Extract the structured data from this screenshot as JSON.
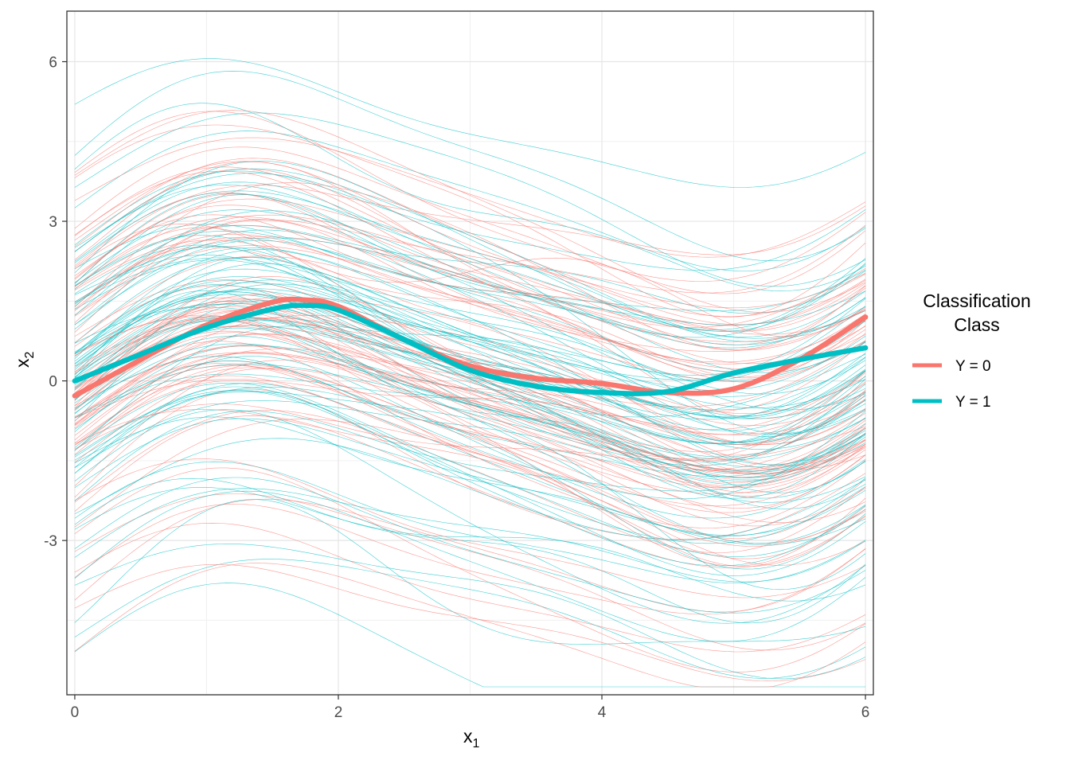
{
  "chart_data": {
    "type": "line",
    "xlabel": "x",
    "xlabel_sub": "1",
    "ylabel": "x",
    "ylabel_sub": "2",
    "xlim": [
      -0.06,
      6.06
    ],
    "ylim": [
      -5.9,
      6.95
    ],
    "x_ticks": [
      0,
      2,
      4,
      6
    ],
    "x_tick_labels": [
      "0",
      "2",
      "4",
      "6"
    ],
    "y_ticks": [
      -3,
      0,
      3,
      6
    ],
    "y_tick_labels": [
      "-3",
      "0",
      "3",
      "6"
    ],
    "grid": true,
    "legend": {
      "title_line1": "Classification",
      "title_line2": "Class",
      "placement": "right"
    },
    "colors": {
      "class0": "#F8766D",
      "class1": "#00BFC4"
    },
    "series": [
      {
        "name": "Y = 0",
        "x": [
          0,
          0.5,
          1,
          1.5,
          1.75,
          2,
          2.5,
          3,
          3.5,
          4,
          4.5,
          5,
          5.5,
          6
        ],
        "values": [
          -0.28,
          0.4,
          1.05,
          1.48,
          1.52,
          1.4,
          0.78,
          0.28,
          0.05,
          -0.05,
          -0.22,
          -0.15,
          0.4,
          1.2
        ]
      },
      {
        "name": "Y = 1",
        "x": [
          0,
          0.5,
          1,
          1.5,
          1.75,
          2,
          2.5,
          3,
          3.5,
          4,
          4.5,
          5,
          5.5,
          6
        ],
        "values": [
          0,
          0.5,
          1.0,
          1.35,
          1.42,
          1.33,
          0.78,
          0.2,
          -0.1,
          -0.22,
          -0.2,
          0.15,
          0.4,
          0.62
        ]
      }
    ],
    "background_curves_per_class": 90
  }
}
